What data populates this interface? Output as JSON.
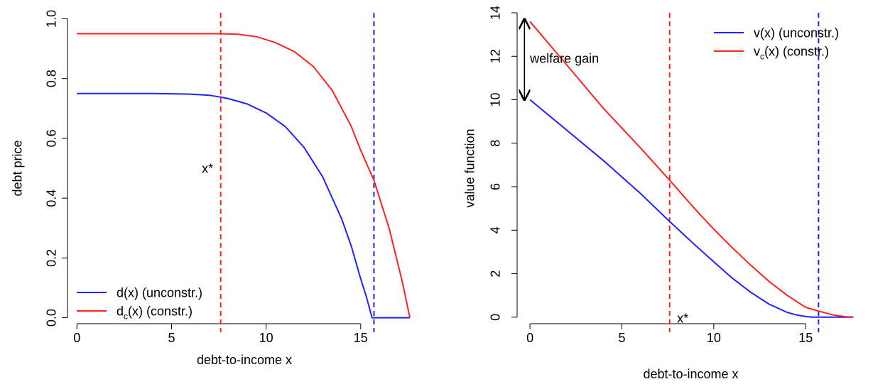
{
  "chart_data": [
    {
      "type": "line",
      "title": "",
      "xlabel": "debt-to-income x",
      "ylabel": "debt price",
      "xlim": [
        -0.5,
        18.2
      ],
      "ylim": [
        -0.02,
        1.02
      ],
      "xticks": [
        0,
        5,
        10,
        15
      ],
      "yticks": [
        0.0,
        0.2,
        0.4,
        0.6,
        0.8,
        1.0
      ],
      "xtick_labels": [
        "0",
        "5",
        "10",
        "15"
      ],
      "ytick_labels": [
        "0.0",
        "0.2",
        "0.4",
        "0.6",
        "0.8",
        "1.0"
      ],
      "grid": false,
      "legend": {
        "placement": "bottom-left",
        "entries": [
          {
            "label": "d(x) (unconstr.)",
            "base": "d",
            "sub": "",
            "rest": "(x) (unconstr.)",
            "color": "#2020ff"
          },
          {
            "label": "dc(x) (constr.)",
            "base": "d",
            "sub": "c",
            "rest": "(x) (constr.)",
            "color": "#ff2020"
          }
        ]
      },
      "series": [
        {
          "name": "d(x) (unconstr.)",
          "color": "#2020ff",
          "x": [
            0,
            2,
            4,
            6,
            7,
            7.6,
            8,
            9,
            10,
            11,
            12,
            13,
            14,
            14.5,
            15,
            15.3,
            15.6,
            16,
            17.6
          ],
          "y": [
            0.75,
            0.75,
            0.75,
            0.748,
            0.744,
            0.738,
            0.733,
            0.715,
            0.685,
            0.64,
            0.57,
            0.47,
            0.33,
            0.24,
            0.13,
            0.07,
            0.0,
            0.0,
            0.0
          ]
        },
        {
          "name": "dc(x) (constr.)",
          "color": "#ff2020",
          "x": [
            0,
            2,
            4,
            6,
            7.6,
            8.5,
            9.5,
            10.5,
            11.5,
            12.5,
            13.5,
            14.5,
            15,
            15.7,
            16.5,
            17.2,
            17.6
          ],
          "y": [
            0.95,
            0.95,
            0.95,
            0.95,
            0.95,
            0.948,
            0.94,
            0.92,
            0.89,
            0.84,
            0.76,
            0.64,
            0.56,
            0.46,
            0.3,
            0.12,
            0.0
          ]
        }
      ],
      "vlines": [
        {
          "x": 7.6,
          "color": "#ff2020",
          "style": "dashed"
        },
        {
          "x": 15.7,
          "color": "#2020ff",
          "style": "dashed"
        }
      ],
      "annotations": [
        {
          "text": "x*",
          "x": 6.6,
          "y": 0.5
        }
      ]
    },
    {
      "type": "line",
      "title": "",
      "xlabel": "debt-to-income x",
      "ylabel": "value function",
      "xlim": [
        -0.7,
        18.2
      ],
      "ylim": [
        -0.3,
        14.0
      ],
      "xticks": [
        0,
        5,
        10,
        15
      ],
      "yticks": [
        0,
        2,
        4,
        6,
        8,
        10,
        12,
        14
      ],
      "xtick_labels": [
        "0",
        "5",
        "10",
        "15"
      ],
      "ytick_labels": [
        "0",
        "2",
        "4",
        "6",
        "8",
        "10",
        "12",
        "14"
      ],
      "grid": false,
      "legend": {
        "placement": "top-right",
        "entries": [
          {
            "label": "v(x) (unconstr.)",
            "base": "v",
            "sub": "",
            "rest": "(x) (unconstr.)",
            "color": "#2020ff"
          },
          {
            "label": "vc(x) (constr.)",
            "base": "v",
            "sub": "c",
            "rest": "(x) (constr.)",
            "color": "#ff2020"
          }
        ]
      },
      "series": [
        {
          "name": "v(x) (unconstr.)",
          "color": "#2020ff",
          "x": [
            0,
            2,
            4,
            6,
            7.6,
            9,
            10,
            11,
            12,
            13,
            14,
            14.5,
            15,
            15.3,
            15.7,
            16.5,
            17.6
          ],
          "y": [
            10.0,
            8.6,
            7.2,
            5.7,
            4.4,
            3.3,
            2.55,
            1.8,
            1.15,
            0.6,
            0.22,
            0.1,
            0.03,
            0.0,
            0.0,
            0.0,
            0.0
          ]
        },
        {
          "name": "vc(x) (constr.)",
          "color": "#ff2020",
          "x": [
            0,
            2,
            4,
            6,
            7.6,
            9,
            10,
            11,
            12,
            13,
            14,
            15,
            15.7,
            16.5,
            17.2,
            17.6
          ],
          "y": [
            13.6,
            11.6,
            9.6,
            7.8,
            6.3,
            4.95,
            4.05,
            3.2,
            2.4,
            1.65,
            1.0,
            0.45,
            0.28,
            0.1,
            0.02,
            0.0
          ]
        }
      ],
      "vlines": [
        {
          "x": 7.6,
          "color": "#ff2020",
          "style": "dashed"
        },
        {
          "x": 15.7,
          "color": "#2020ff",
          "style": "dashed"
        }
      ],
      "arrow": {
        "x": -0.3,
        "y_from": 10.0,
        "y_to": 13.7,
        "style": "double-headed"
      },
      "annotations": [
        {
          "text": "welfare gain",
          "x": 0.0,
          "y": 11.9
        },
        {
          "text": "x*",
          "x": 8.0,
          "y": -0.05
        }
      ]
    }
  ]
}
